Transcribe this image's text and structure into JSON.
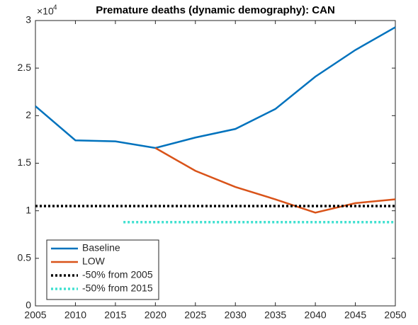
{
  "chart_data": {
    "type": "line",
    "title": "Premature deaths (dynamic demography): CAN",
    "y_exponent_label": "×10",
    "y_exponent": "4",
    "x": [
      2005,
      2010,
      2015,
      2020,
      2025,
      2030,
      2035,
      2040,
      2045,
      2050
    ],
    "series": [
      {
        "name": "Baseline",
        "color": "#0072bd",
        "style": "solid",
        "values": [
          2.1,
          1.74,
          1.73,
          1.66,
          1.77,
          1.86,
          2.07,
          2.41,
          2.69,
          2.93
        ]
      },
      {
        "name": "LOW",
        "color": "#d95319",
        "style": "solid",
        "values": [
          null,
          null,
          null,
          1.66,
          1.42,
          1.25,
          1.12,
          0.98,
          1.08,
          1.12
        ]
      },
      {
        "name": "-50% from 2005",
        "color": "#000000",
        "style": "dotted",
        "x": [
          2005,
          2050
        ],
        "values": [
          1.05,
          1.05
        ]
      },
      {
        "name": "-50% from 2015",
        "color": "#40e0d0",
        "style": "dotted",
        "x": [
          2016,
          2050
        ],
        "values": [
          0.88,
          0.88
        ]
      }
    ],
    "xlim": [
      2005,
      2050
    ],
    "xticks": [
      2005,
      2010,
      2015,
      2020,
      2025,
      2030,
      2035,
      2040,
      2045,
      2050
    ],
    "ylim": [
      0,
      3
    ],
    "yticks": [
      0,
      0.5,
      1,
      1.5,
      2,
      2.5,
      3
    ],
    "legend": "lower left",
    "grid": false
  }
}
